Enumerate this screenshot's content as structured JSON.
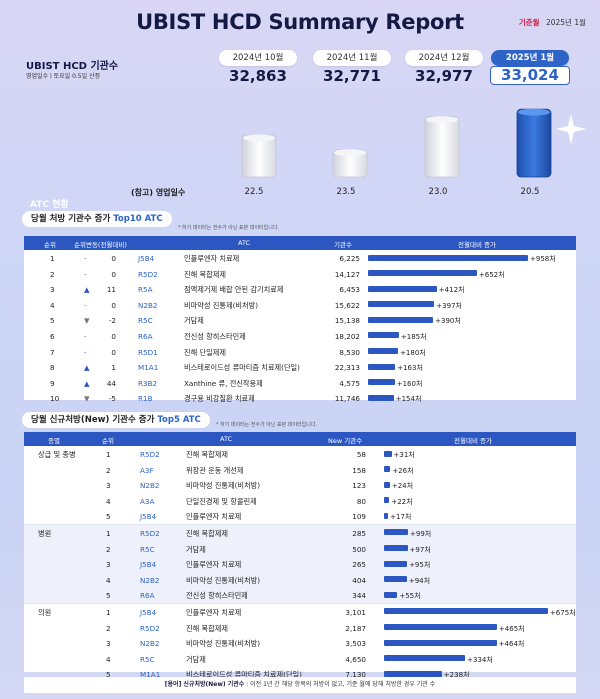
{
  "header": {
    "title": "UBIST HCD Summary Report",
    "basis_label": "기준월",
    "basis_value": "2025년 1월"
  },
  "kpi": {
    "label": "UBIST HCD 기관수",
    "sub": "영업일수ㅣ토요일 0.5일 산정",
    "ref_label": "(참고) 영업일수",
    "months": [
      {
        "month": "2024년 10월",
        "value": "32,863",
        "workdays": "22.5"
      },
      {
        "month": "2024년 11월",
        "value": "32,771",
        "workdays": "23.5"
      },
      {
        "month": "2024년 12월",
        "value": "32,977",
        "workdays": "23.0"
      },
      {
        "month": "2025년 1월",
        "value": "33,024",
        "workdays": "20.5"
      }
    ]
  },
  "section": {
    "title": "ATC 현황",
    "top10_prefix": "당월 처방 기관수 증가",
    "top10_hl": "Top10 ATC",
    "top10_note": "* 하기 데이터는 전수가 아닌 표본 데이터입니다.",
    "top5_prefix": "당월 신규처방(New) 기관수 증가",
    "top5_hl": "Top5 ATC",
    "top5_note": "* 하기 데이터는 전수가 아닌 표본 데이터입니다."
  },
  "table1": {
    "headers": [
      "순위",
      "순위변동(전월대비)",
      "ATC",
      "기관수",
      "전월대비 증가"
    ],
    "rows": [
      {
        "rank": "1",
        "arrow": "-",
        "change": "0",
        "code": "J5B4",
        "name": "인플루엔자 치료제",
        "count": "6,225",
        "increase": 958,
        "label": "+958처"
      },
      {
        "rank": "2",
        "arrow": "-",
        "change": "0",
        "code": "R5D2",
        "name": "진해 복합제제",
        "count": "14,127",
        "increase": 652,
        "label": "+652처"
      },
      {
        "rank": "3",
        "arrow": "▲",
        "change": "11",
        "code": "R5A",
        "name": "점액제거제 배합 안된 감기치료제",
        "count": "6,453",
        "increase": 412,
        "label": "+412처"
      },
      {
        "rank": "4",
        "arrow": "-",
        "change": "0",
        "code": "N2B2",
        "name": "비마약성 진통제(비처방)",
        "count": "15,622",
        "increase": 397,
        "label": "+397처"
      },
      {
        "rank": "5",
        "arrow": "▼",
        "change": "-2",
        "code": "R5C",
        "name": "거담제",
        "count": "15,138",
        "increase": 390,
        "label": "+390처"
      },
      {
        "rank": "6",
        "arrow": "-",
        "change": "0",
        "code": "R6A",
        "name": "전신성 항히스타민제",
        "count": "18,202",
        "increase": 185,
        "label": "+185처"
      },
      {
        "rank": "7",
        "arrow": "-",
        "change": "0",
        "code": "R5D1",
        "name": "진해 단일제제",
        "count": "8,530",
        "increase": 180,
        "label": "+180처"
      },
      {
        "rank": "8",
        "arrow": "▲",
        "change": "1",
        "code": "M1A1",
        "name": "비스테로이드성 류마티즘 치료제(단일)",
        "count": "22,313",
        "increase": 163,
        "label": "+163처"
      },
      {
        "rank": "9",
        "arrow": "▲",
        "change": "44",
        "code": "R3B2",
        "name": "Xanthine 류, 전신작용제",
        "count": "4,575",
        "increase": 160,
        "label": "+160처"
      },
      {
        "rank": "10",
        "arrow": "▼",
        "change": "-5",
        "code": "R1B",
        "name": "경구용 비강질환 치료제",
        "count": "11,746",
        "increase": 154,
        "label": "+154처"
      }
    ]
  },
  "table2": {
    "headers": [
      "종별",
      "순위",
      "ATC",
      "New 기관수",
      "전월대비 증가"
    ],
    "groups": [
      {
        "name": "상급 및 종병",
        "rows": [
          {
            "rank": "1",
            "code": "R5D2",
            "name": "진해 복합제제",
            "count": "58",
            "increase": 31,
            "label": "+31처"
          },
          {
            "rank": "2",
            "code": "A3F",
            "name": "위장관 운동 개선제",
            "count": "158",
            "increase": 26,
            "label": "+26처"
          },
          {
            "rank": "3",
            "code": "N2B2",
            "name": "비마약성 진통제(비처방)",
            "count": "123",
            "increase": 24,
            "label": "+24처"
          },
          {
            "rank": "4",
            "code": "A3A",
            "name": "단일진경제 및 항콜린제",
            "count": "80",
            "increase": 22,
            "label": "+22처"
          },
          {
            "rank": "5",
            "code": "J5B4",
            "name": "인플루엔자 치료제",
            "count": "109",
            "increase": 17,
            "label": "+17처"
          }
        ]
      },
      {
        "name": "병원",
        "rows": [
          {
            "rank": "1",
            "code": "R5D2",
            "name": "진해 복합제제",
            "count": "285",
            "increase": 99,
            "label": "+99처"
          },
          {
            "rank": "2",
            "code": "R5C",
            "name": "거담제",
            "count": "500",
            "increase": 97,
            "label": "+97처"
          },
          {
            "rank": "3",
            "code": "J5B4",
            "name": "인플루엔자 치료제",
            "count": "265",
            "increase": 95,
            "label": "+95처"
          },
          {
            "rank": "4",
            "code": "N2B2",
            "name": "비마약성 진통제(비처방)",
            "count": "404",
            "increase": 94,
            "label": "+94처"
          },
          {
            "rank": "5",
            "code": "R6A",
            "name": "전신성 항히스타민제",
            "count": "344",
            "increase": 55,
            "label": "+55처"
          }
        ]
      },
      {
        "name": "의원",
        "rows": [
          {
            "rank": "1",
            "code": "J5B4",
            "name": "인플루엔자 치료제",
            "count": "3,101",
            "increase": 675,
            "label": "+675처"
          },
          {
            "rank": "2",
            "code": "R5D2",
            "name": "진해 복합제제",
            "count": "2,187",
            "increase": 465,
            "label": "+465처"
          },
          {
            "rank": "3",
            "code": "N2B2",
            "name": "비마약성 진통제(비처방)",
            "count": "3,503",
            "increase": 464,
            "label": "+464처"
          },
          {
            "rank": "4",
            "code": "R5C",
            "name": "거담제",
            "count": "4,650",
            "increase": 334,
            "label": "+334처"
          },
          {
            "rank": "5",
            "code": "M1A1",
            "name": "비스테로이드성 류마티즘 치료제(단일)",
            "count": "7,130",
            "increase": 238,
            "label": "+238처"
          }
        ]
      }
    ]
  },
  "footer": {
    "term": "[용어] 신규처방(New) 기관수",
    "text": ": 이전 1년 간 해당 항목의 처방이 없고, 기준 월에 당해 처방한 경우 기관 수"
  },
  "colors": {
    "accent": "#2c57c2",
    "highlight_bar": "#2e63c8",
    "bar_gray": "#e6e6e6"
  },
  "chart_data": [
    {
      "type": "bar",
      "title": "UBIST HCD 기관수",
      "categories": [
        "2024년 10월",
        "2024년 11월",
        "2024년 12월",
        "2025년 1월"
      ],
      "values": [
        32863,
        32771,
        32977,
        33024
      ],
      "ylim": [
        32600,
        33100
      ]
    },
    {
      "type": "bar",
      "title": "당월 처방 기관수 증가 Top10 ATC",
      "categories": [
        "J5B4",
        "R5D2",
        "R5A",
        "N2B2",
        "R5C",
        "R6A",
        "R5D1",
        "M1A1",
        "R3B2",
        "R1B"
      ],
      "values": [
        958,
        652,
        412,
        397,
        390,
        185,
        180,
        163,
        160,
        154
      ]
    },
    {
      "type": "bar",
      "title": "당월 신규처방(New) 기관수 증가 Top5 ATC",
      "categories": [
        "R5D2",
        "A3F",
        "N2B2",
        "A3A",
        "J5B4",
        "R5D2",
        "R5C",
        "J5B4",
        "N2B2",
        "R6A",
        "J5B4",
        "R5D2",
        "N2B2",
        "R5C",
        "M1A1"
      ],
      "values": [
        31,
        26,
        24,
        22,
        17,
        99,
        97,
        95,
        94,
        55,
        675,
        465,
        464,
        334,
        238
      ]
    }
  ]
}
